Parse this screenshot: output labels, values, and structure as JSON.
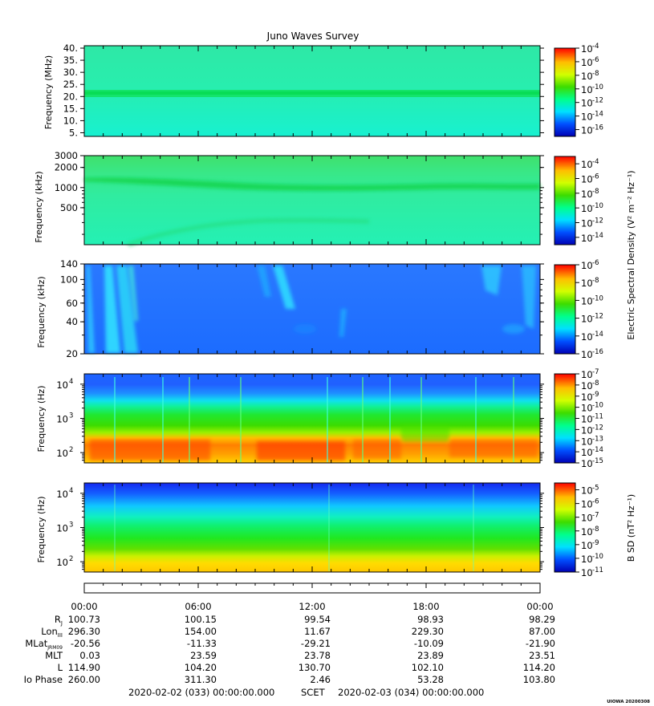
{
  "title": "Juno Waves Survey",
  "chart_data": [
    {
      "type": "heatmap",
      "ylabel": "Frequency (MHz)",
      "yscale": "linear",
      "ylim": [
        3.5,
        41
      ],
      "yticks": [
        5,
        10,
        15,
        20,
        25,
        30,
        35,
        40
      ],
      "ytick_labels": [
        "5.",
        "10.",
        "15.",
        "20.",
        "25.",
        "30.",
        "35.",
        "40."
      ],
      "colorbar": {
        "range_exp": [
          -17,
          -4
        ],
        "ticks": [
          -16,
          -14,
          -12,
          -10,
          -8,
          -6,
          -4
        ]
      },
      "description_values": {
        "background": "10^-12.5",
        "band_at_21MHz": "10^-11.5"
      }
    },
    {
      "type": "heatmap",
      "ylabel": "Frequency (kHz)",
      "yscale": "log",
      "ylim": [
        140,
        3000
      ],
      "yticks": [
        500,
        1000,
        2000,
        3000
      ],
      "ytick_labels": [
        "500",
        "1000",
        "2000",
        "3000"
      ],
      "colorbar": {
        "range_exp": [
          -15,
          -3
        ],
        "ticks": [
          -14,
          -12,
          -10,
          -8,
          -6,
          -4
        ]
      }
    },
    {
      "type": "heatmap",
      "ylabel": "Frequency (kHz)",
      "yscale": "log",
      "ylim": [
        20,
        140
      ],
      "yticks": [
        20,
        40,
        60,
        100,
        140
      ],
      "ytick_labels": [
        "20",
        "40",
        "60",
        "100",
        "140"
      ],
      "colorbar": {
        "range_exp": [
          -16,
          -6
        ],
        "ticks": [
          -16,
          -14,
          -12,
          -10,
          -8,
          -6
        ]
      }
    },
    {
      "type": "heatmap",
      "ylabel": "Frequency (Hz)",
      "yscale": "log",
      "ylim": [
        50,
        20000
      ],
      "yticks": [
        100,
        1000,
        10000
      ],
      "ytick_exps": [
        "2",
        "3",
        "4"
      ],
      "colorbar": {
        "range_exp": [
          -15,
          -7
        ],
        "ticks": [
          -15,
          -14,
          -13,
          -12,
          -11,
          -10,
          -9,
          -8,
          -7
        ]
      }
    },
    {
      "type": "heatmap",
      "ylabel": "Frequency (Hz)",
      "yscale": "log",
      "ylim": [
        50,
        20000
      ],
      "yticks": [
        100,
        1000,
        10000
      ],
      "ytick_exps": [
        "2",
        "3",
        "4"
      ],
      "colorbar": {
        "range_exp": [
          -11,
          -4.5
        ],
        "ticks": [
          -11,
          -10,
          -9,
          -8,
          -7,
          -6,
          -5
        ]
      }
    }
  ],
  "colorbar_labels": {
    "e_field": "Electric Spectral Density (V² m⁻² Hz⁻¹)",
    "b_field": "B SD (nT² Hz⁻¹)"
  },
  "time_axis": {
    "ticks": [
      "00:00",
      "06:00",
      "12:00",
      "18:00",
      "00:00"
    ]
  },
  "ephemeris": {
    "rows": [
      {
        "label": "R_J",
        "values": [
          "100.73",
          "100.15",
          "99.54",
          "98.93",
          "98.29"
        ]
      },
      {
        "label": "Lon_III",
        "values": [
          "296.30",
          "154.00",
          "11.67",
          "229.30",
          "87.00"
        ]
      },
      {
        "label": "MLat_JRM09",
        "values": [
          "-20.56",
          "-11.33",
          "-29.21",
          "-10.09",
          "-21.90"
        ]
      },
      {
        "label": "MLT",
        "values": [
          "0.03",
          "23.59",
          "23.78",
          "23.89",
          "23.51"
        ]
      },
      {
        "label": "L",
        "values": [
          "114.90",
          "104.20",
          "130.70",
          "102.10",
          "114.20"
        ]
      },
      {
        "label": "Io Phase",
        "values": [
          "260.00",
          "311.30",
          "2.46",
          "53.28",
          "103.80"
        ]
      }
    ]
  },
  "footer": {
    "start": "2020-02-02 (033) 00:00:00.000",
    "scet": "SCET",
    "end": "2020-02-03 (034) 00:00:00.000"
  },
  "stamp": "UIOWA 20200308"
}
